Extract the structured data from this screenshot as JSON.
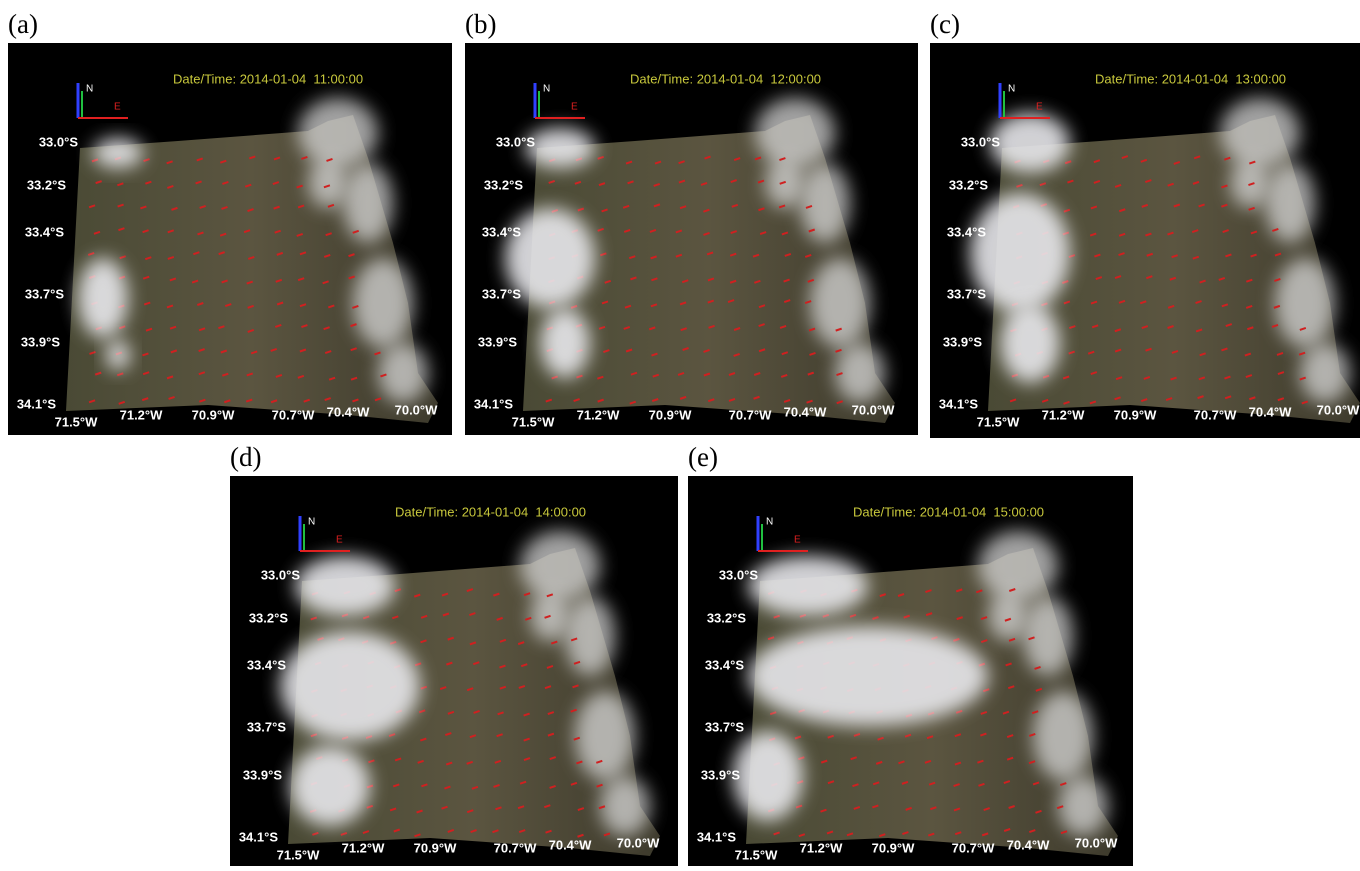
{
  "panels": [
    {
      "label": "(a)",
      "datetime": "Date/Time: 2014-01-04  11:00:00"
    },
    {
      "label": "(b)",
      "datetime": "Date/Time: 2014-01-04  12:00:00"
    },
    {
      "label": "(c)",
      "datetime": "Date/Time: 2014-01-04  13:00:00"
    },
    {
      "label": "(d)",
      "datetime": "Date/Time: 2014-01-04  14:00:00"
    },
    {
      "label": "(e)",
      "datetime": "Date/Time: 2014-01-04  15:00:00"
    }
  ],
  "axis_north": "N",
  "axis_east": "E",
  "lat_labels": [
    "33.0°S",
    "33.2°S",
    "33.4°S",
    "33.7°S",
    "33.9°S",
    "34.1°S"
  ],
  "lon_labels": [
    "71.5°W",
    "71.2°W",
    "70.9°W",
    "70.7°W",
    "70.4°W",
    "70.0°W"
  ]
}
